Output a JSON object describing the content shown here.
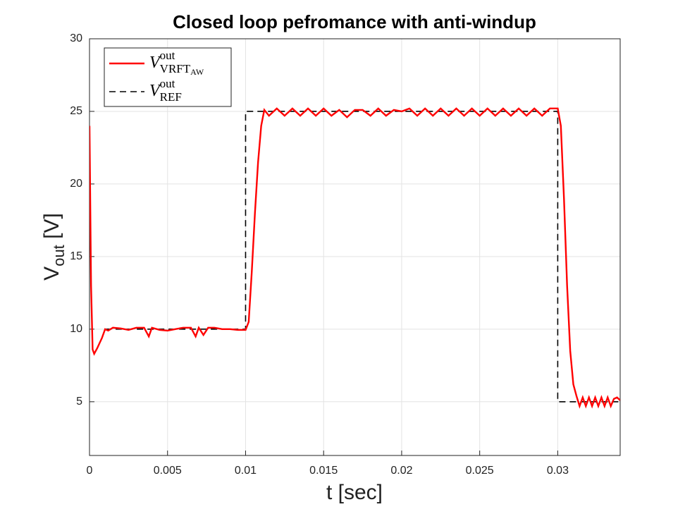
{
  "chart_data": {
    "type": "line",
    "title": "Closed loop pefromance with anti-windup",
    "x_label": "t [sec]",
    "y_label": {
      "base": "V",
      "sub": "out",
      "rest": " [V]"
    },
    "xlim": [
      0,
      0.034
    ],
    "ylim": [
      1.3,
      30
    ],
    "xticks": [
      0,
      0.005,
      0.01,
      0.015,
      0.02,
      0.025,
      0.03
    ],
    "yticks": [
      5,
      10,
      15,
      20,
      25,
      30
    ],
    "grid": true,
    "legend": "upper-left",
    "series": [
      {
        "name": {
          "base": "V",
          "sup": "out",
          "sub": "VRFT",
          "sub2": "AW"
        },
        "color": "#ff0000",
        "dash": false,
        "x": [
          0,
          0.0001,
          0.0002,
          0.0003,
          0.0005,
          0.0008,
          0.001,
          0.0012,
          0.0015,
          0.002,
          0.0025,
          0.003,
          0.0035,
          0.0038,
          0.004,
          0.0045,
          0.005,
          0.0055,
          0.006,
          0.0065,
          0.0068,
          0.007,
          0.0073,
          0.0076,
          0.008,
          0.0085,
          0.009,
          0.0095,
          0.01,
          0.0102,
          0.0104,
          0.0106,
          0.0108,
          0.011,
          0.0112,
          0.0115,
          0.012,
          0.0125,
          0.013,
          0.0135,
          0.014,
          0.0145,
          0.015,
          0.0155,
          0.016,
          0.0165,
          0.017,
          0.0175,
          0.018,
          0.0185,
          0.019,
          0.0195,
          0.02,
          0.0205,
          0.021,
          0.0215,
          0.022,
          0.0225,
          0.023,
          0.0235,
          0.024,
          0.0245,
          0.025,
          0.0255,
          0.026,
          0.0265,
          0.027,
          0.0275,
          0.028,
          0.0285,
          0.029,
          0.0295,
          0.03,
          0.0302,
          0.0304,
          0.0306,
          0.0308,
          0.031,
          0.0312,
          0.0314,
          0.0316,
          0.0318,
          0.032,
          0.0322,
          0.0324,
          0.0326,
          0.0328,
          0.033,
          0.0332,
          0.0334,
          0.0336,
          0.0338,
          0.034
        ],
        "values": [
          24,
          13,
          8.6,
          8.3,
          8.7,
          9.4,
          10.0,
          9.9,
          10.1,
          10.05,
          9.95,
          10.1,
          10.1,
          9.5,
          10.1,
          9.95,
          9.9,
          10.0,
          10.1,
          10.1,
          9.5,
          10.1,
          9.6,
          10.1,
          10.1,
          10.0,
          10.0,
          9.95,
          9.95,
          10.5,
          14,
          18,
          21.5,
          24,
          25.1,
          24.7,
          25.2,
          24.7,
          25.2,
          24.7,
          25.2,
          24.7,
          25.2,
          24.7,
          25.1,
          24.6,
          25.1,
          25.1,
          24.7,
          25.2,
          24.7,
          25.1,
          25.0,
          25.2,
          24.7,
          25.2,
          24.7,
          25.2,
          24.7,
          25.2,
          24.7,
          25.2,
          24.7,
          25.2,
          24.7,
          25.2,
          24.7,
          25.2,
          24.7,
          25.2,
          24.7,
          25.2,
          25.2,
          24,
          19,
          13,
          8.5,
          6.2,
          5.4,
          4.7,
          5.3,
          4.7,
          5.3,
          4.7,
          5.3,
          4.7,
          5.3,
          4.7,
          5.3,
          4.7,
          5.2,
          5.3,
          5.1
        ]
      },
      {
        "name": {
          "base": "V",
          "sup": "out",
          "sub": "REF"
        },
        "color": "#000000",
        "dash": true,
        "x": [
          0.001,
          0.01,
          0.01,
          0.03,
          0.03,
          0.034
        ],
        "values": [
          10,
          10,
          25,
          25,
          5,
          5
        ]
      }
    ]
  }
}
